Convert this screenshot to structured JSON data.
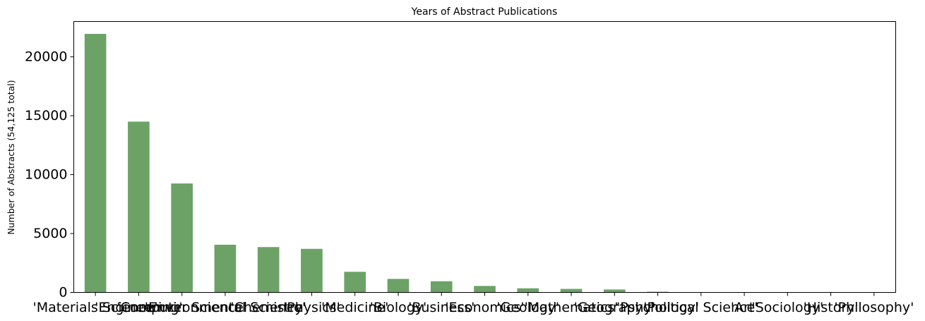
{
  "chart_data": {
    "type": "bar",
    "title": "Years of Abstract Publications",
    "xlabel": "",
    "ylabel": "Number of Abstracts (54,125 total)",
    "categories": [
      "'Materials Science'",
      "'Engineering'",
      "'Computer Science'",
      "'Environmental Science'",
      "'Chemistry'",
      "'Physics'",
      "'Medicine'",
      "'Biology'",
      "'Business'",
      "'Economics'",
      "'Geology'",
      "'Mathematics'",
      "'Geography'",
      "'Psychology'",
      "'Political Science'",
      "'Art'",
      "'Sociology'",
      "'History'",
      "'Philosophy'"
    ],
    "values": [
      21950,
      14500,
      9250,
      4050,
      3850,
      3700,
      1750,
      1150,
      950,
      550,
      350,
      300,
      250,
      60,
      15,
      10,
      5,
      5,
      3
    ],
    "ylim": [
      0,
      23000
    ],
    "yticks": [
      0,
      5000,
      10000,
      15000,
      20000
    ],
    "bar_color": "#6ca266",
    "grid": false,
    "legend": "none"
  }
}
